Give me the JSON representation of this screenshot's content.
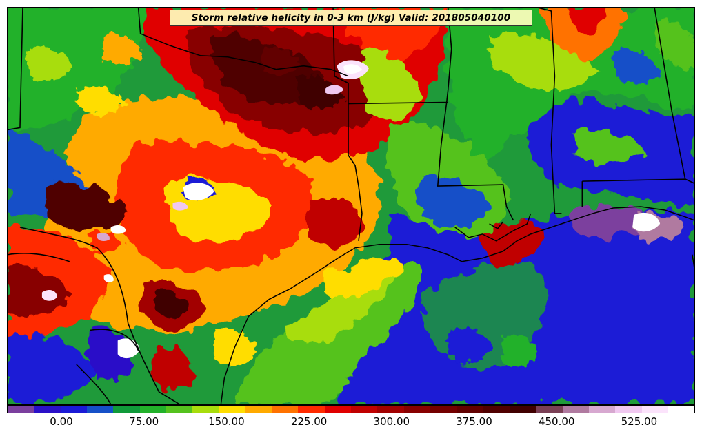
{
  "map": {
    "title": "Storm relative helicity in 0-3 km (J/kg) Valid: 201805040100"
  },
  "colorbar": {
    "colors": [
      "#7b3f9e",
      "#2a10c8",
      "#1a1ad6",
      "#1550c8",
      "#109a3a",
      "#22b12a",
      "#55c21e",
      "#a8dd0c",
      "#ffdd00",
      "#ffaa00",
      "#ff7200",
      "#ff2a00",
      "#e00000",
      "#c00000",
      "#a20000",
      "#880000",
      "#740000",
      "#620000",
      "#500000",
      "#400000",
      "#7a3f55",
      "#b07aa0",
      "#d7a8d0",
      "#f0c8f0",
      "#fbe3fb",
      "#ffffff"
    ],
    "labels": [
      "0.00",
      "75.00",
      "150.00",
      "225.00",
      "300.00",
      "375.00",
      "450.00",
      "525.00"
    ]
  }
}
